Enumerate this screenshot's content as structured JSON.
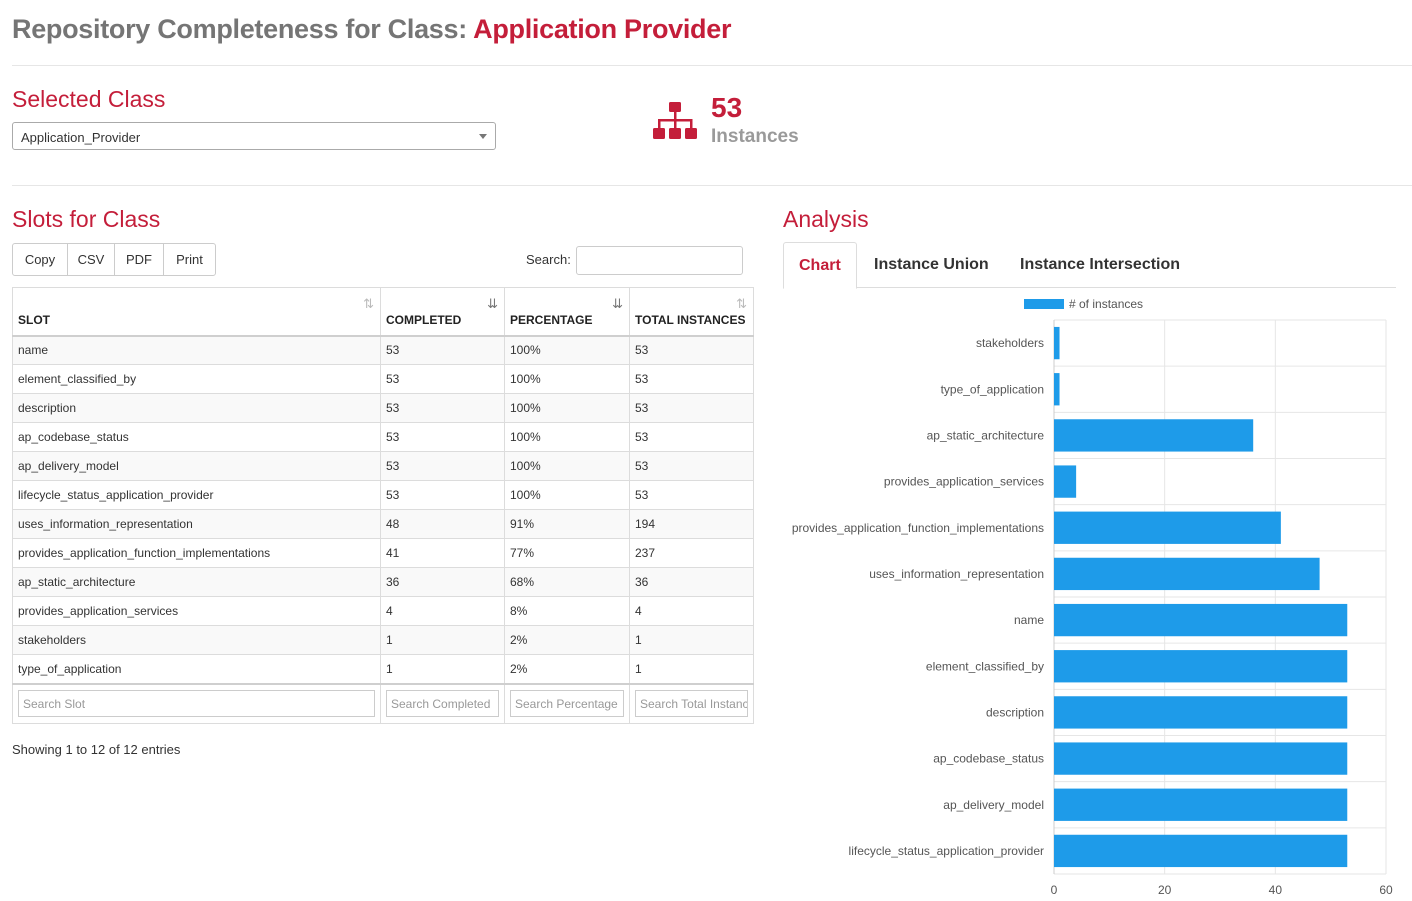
{
  "header": {
    "title_prefix": "Repository Completeness for Class: ",
    "title_class": "Application Provider"
  },
  "selected_class": {
    "heading": "Selected Class",
    "value": "Application_Provider"
  },
  "instances": {
    "icon": "hierarchy-icon",
    "count": "53",
    "label": "Instances"
  },
  "slots_panel": {
    "heading": "Slots for Class",
    "buttons": [
      "Copy",
      "CSV",
      "PDF",
      "Print"
    ],
    "search_label": "Search:",
    "columns": [
      "SLOT",
      "COMPLETED",
      "PERCENTAGE",
      "TOTAL INSTANCES"
    ],
    "rows": [
      [
        "name",
        "53",
        "100%",
        "53"
      ],
      [
        "element_classified_by",
        "53",
        "100%",
        "53"
      ],
      [
        "description",
        "53",
        "100%",
        "53"
      ],
      [
        "ap_codebase_status",
        "53",
        "100%",
        "53"
      ],
      [
        "ap_delivery_model",
        "53",
        "100%",
        "53"
      ],
      [
        "lifecycle_status_application_provider",
        "53",
        "100%",
        "53"
      ],
      [
        "uses_information_representation",
        "48",
        "91%",
        "194"
      ],
      [
        "provides_application_function_implementations",
        "41",
        "77%",
        "237"
      ],
      [
        "ap_static_architecture",
        "36",
        "68%",
        "36"
      ],
      [
        "provides_application_services",
        "4",
        "8%",
        "4"
      ],
      [
        "stakeholders",
        "1",
        "2%",
        "1"
      ],
      [
        "type_of_application",
        "1",
        "2%",
        "1"
      ]
    ],
    "column_search_placeholders": [
      "Search Slot",
      "Search Completed",
      "Search Percentage",
      "Search Total Instances"
    ],
    "footer_info": "Showing 1 to 12 of 12 entries"
  },
  "analysis": {
    "heading": "Analysis",
    "tabs": [
      "Chart",
      "Instance Union",
      "Instance Intersection"
    ],
    "active_tab": "Chart"
  },
  "chart_data": {
    "type": "bar",
    "orientation": "horizontal",
    "categories": [
      "stakeholders",
      "type_of_application",
      "ap_static_architecture",
      "provides_application_services",
      "provides_application_function_implementations",
      "uses_information_representation",
      "name",
      "element_classified_by",
      "description",
      "ap_codebase_status",
      "ap_delivery_model",
      "lifecycle_status_application_provider"
    ],
    "series": [
      {
        "name": "# of instances",
        "values": [
          1,
          1,
          36,
          4,
          41,
          48,
          53,
          53,
          53,
          53,
          53,
          53
        ]
      }
    ],
    "xlim": [
      0,
      60
    ],
    "xticks": [
      "0",
      "20",
      "40",
      "60"
    ],
    "grid": true,
    "legend": "top-center",
    "bar_color": "#1e9be9"
  }
}
